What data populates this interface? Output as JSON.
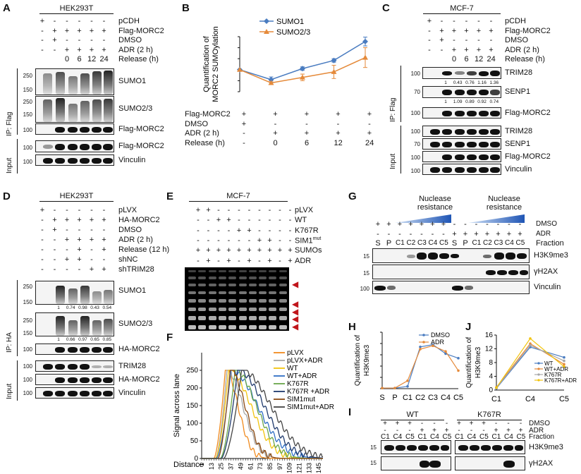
{
  "panels": {
    "A": "A",
    "B": "B",
    "C": "C",
    "D": "D",
    "E": "E",
    "F": "F",
    "G": "G",
    "H": "H",
    "I": "I",
    "J": "J"
  },
  "A": {
    "cell": "HEK293T",
    "rows": [
      {
        "label": "pCDH",
        "marks": [
          "+",
          "-",
          "-",
          "-",
          "-",
          "-"
        ]
      },
      {
        "label": "Flag-MORC2",
        "marks": [
          "-",
          "+",
          "+",
          "+",
          "+",
          "+"
        ]
      },
      {
        "label": "DMSO",
        "marks": [
          "-",
          "+",
          "-",
          "-",
          "-",
          "-"
        ]
      },
      {
        "label": "ADR (2 h)",
        "marks": [
          "-",
          "-",
          "+",
          "+",
          "+",
          "+"
        ]
      },
      {
        "label": "Release (h)",
        "marks": [
          "",
          "",
          "0",
          "6",
          "12",
          "24"
        ]
      }
    ],
    "blots": [
      "SUMO1",
      "SUMO2/3",
      "Flag-MORC2",
      "Flag-MORC2",
      "Vinculin"
    ],
    "mw": {
      "sumo1_a": "250",
      "sumo1_b": "150",
      "sumo2_a": "250",
      "sumo2_b": "150",
      "flag": "100",
      "in_flag": "100",
      "vinc": "100"
    },
    "ip": "IP: Flag",
    "input": "Input"
  },
  "B": {
    "rows": [
      {
        "label": "Flag-MORC2",
        "marks": [
          "+",
          "+",
          "+",
          "+",
          "+"
        ]
      },
      {
        "label": "DMSO",
        "marks": [
          "+",
          "-",
          "-",
          "-",
          "-"
        ]
      },
      {
        "label": "ADR (2 h)",
        "marks": [
          "-",
          "+",
          "+",
          "+",
          "+"
        ]
      },
      {
        "label": "Release (h)",
        "marks": [
          "-",
          "0",
          "6",
          "12",
          "24"
        ]
      }
    ]
  },
  "C": {
    "cell": "MCF-7",
    "rows": [
      {
        "label": "pCDH",
        "marks": [
          "+",
          "-",
          "-",
          "-",
          "-",
          "-"
        ]
      },
      {
        "label": "Flag-MORC2",
        "marks": [
          "-",
          "+",
          "+",
          "+",
          "+",
          "+"
        ]
      },
      {
        "label": "DMSO",
        "marks": [
          "-",
          "+",
          "-",
          "-",
          "-",
          "-"
        ]
      },
      {
        "label": "ADR (2 h)",
        "marks": [
          "-",
          "-",
          "+",
          "+",
          "+",
          "+"
        ]
      },
      {
        "label": "Release (h)",
        "marks": [
          "",
          "",
          "0",
          "6",
          "12",
          "24"
        ]
      }
    ],
    "blots": [
      "TRIM28",
      "SENP1",
      "Flag-MORC2",
      "TRIM28",
      "SENP1",
      "Flag-MORC2",
      "Vinculin"
    ],
    "quant_trim": [
      "1",
      "0.43",
      "0.76",
      "1.16",
      "1.36"
    ],
    "quant_senp": [
      "1",
      "1.09",
      "0.89",
      "0.92",
      "0.74"
    ],
    "mw": {
      "a": "100",
      "b": "70",
      "c": "100",
      "d": "100",
      "e": "70",
      "f": "100",
      "g": "100"
    },
    "ip": "IP: Flag",
    "input": "Input"
  },
  "D": {
    "cell": "HEK293T",
    "rows": [
      {
        "label": "pLVX",
        "marks": [
          "+",
          "-",
          "-",
          "-",
          "-",
          "-"
        ]
      },
      {
        "label": "HA-MORC2",
        "marks": [
          "-",
          "+",
          "+",
          "+",
          "+",
          "+"
        ]
      },
      {
        "label": "DMSO",
        "marks": [
          "-",
          "+",
          "-",
          "-",
          "-",
          "-"
        ]
      },
      {
        "label": "ADR (2 h)",
        "marks": [
          "-",
          "-",
          "+",
          "+",
          "+",
          "+"
        ]
      },
      {
        "label": "Release (12 h)",
        "marks": [
          "-",
          "-",
          "-",
          "+",
          "-",
          "+"
        ]
      },
      {
        "label": "shNC",
        "marks": [
          "-",
          "-",
          "+",
          "+",
          "-",
          "-"
        ]
      },
      {
        "label": "shTRIM28",
        "marks": [
          "-",
          "-",
          "-",
          "-",
          "+",
          "+"
        ]
      }
    ],
    "blots": [
      "SUMO1",
      "SUMO2/3",
      "HA-MORC2",
      "TRIM28",
      "HA-MORC2",
      "Vinculin"
    ],
    "quant_sumo1": [
      "1",
      "0.74",
      "0.98",
      "0.43",
      "0.54"
    ],
    "quant_sumo2": [
      "1",
      "0.66",
      "0.97",
      "0.65",
      "0.85"
    ],
    "mw": {
      "a": "250",
      "b": "150",
      "c": "250",
      "d": "150",
      "e": "100",
      "f": "100",
      "g": "100",
      "h": "100"
    },
    "ip": "IP: HA",
    "input": "Input"
  },
  "E": {
    "cell": "MCF-7",
    "rows": [
      {
        "label": "pLVX",
        "marks": [
          "+",
          "+",
          "-",
          "-",
          "-",
          "-",
          "-",
          "-",
          "-",
          "-"
        ]
      },
      {
        "label": "WT",
        "marks": [
          "-",
          "-",
          "+",
          "+",
          "-",
          "-",
          "-",
          "-",
          "-",
          "-"
        ]
      },
      {
        "label": "K767R",
        "marks": [
          "-",
          "-",
          "-",
          "-",
          "+",
          "+",
          "-",
          "-",
          "-",
          "-"
        ]
      },
      {
        "label": "SIM1",
        "sup": "mut",
        "marks": [
          "-",
          "-",
          "-",
          "-",
          "-",
          "-",
          "+",
          "+",
          "-",
          "-"
        ]
      },
      {
        "label": "SUMOs",
        "marks": [
          "+",
          "+",
          "+",
          "+",
          "+",
          "+",
          "+",
          "+",
          "+",
          "+"
        ]
      },
      {
        "label": "ADR",
        "marks": [
          "-",
          "+",
          "-",
          "+",
          "-",
          "+",
          "-",
          "+",
          "-",
          "+"
        ]
      }
    ]
  },
  "G": {
    "nuclease": "Nuclease\nresistance",
    "nuc1": "Nuclease",
    "nuc2": "resistance",
    "rows": [
      {
        "label": "DMSO",
        "marks": [
          "+",
          "+",
          "+",
          "+",
          "+",
          "+",
          "+",
          "-",
          "-",
          "-",
          "-",
          "-",
          "-",
          "-"
        ]
      },
      {
        "label": "ADR",
        "marks": [
          "-",
          "-",
          "-",
          "-",
          "-",
          "-",
          "-",
          "+",
          "+",
          "+",
          "+",
          "+",
          "+",
          "+"
        ]
      },
      {
        "label": "Fraction",
        "marks": [
          "S",
          "P",
          "C1",
          "C2",
          "C3",
          "C4",
          "C5",
          "S",
          "P",
          "C1",
          "C2",
          "C3",
          "C4",
          "C5"
        ]
      }
    ],
    "blots": [
      "H3K9me3",
      "γH2AX",
      "Vinculin"
    ],
    "mw": {
      "a": "15",
      "b": "15",
      "c": "100"
    }
  },
  "I": {
    "groups": [
      "WT",
      "K767R"
    ],
    "rows": [
      {
        "label": "DMSO",
        "marks": [
          "+",
          "+",
          "+",
          "-",
          "-",
          "-",
          "+",
          "+",
          "+",
          "-",
          "-",
          "-"
        ]
      },
      {
        "label": "ADR",
        "marks": [
          "-",
          "-",
          "-",
          "+",
          "+",
          "+",
          "-",
          "-",
          "-",
          "+",
          "+",
          "+"
        ]
      },
      {
        "label": "Fraction",
        "marks": [
          "C1",
          "C4",
          "C5",
          "C1",
          "C4",
          "C5",
          "C1",
          "C4",
          "C5",
          "C1",
          "C4",
          "C5"
        ]
      }
    ],
    "blots": [
      "H3K9me3",
      "γH2AX"
    ],
    "mw": {
      "a": "15",
      "b": "15"
    }
  },
  "chart_data": [
    {
      "id": "B",
      "type": "line",
      "ylabel": "Quantification of MORC2 SUMOylation",
      "ylim": [
        0,
        2.5
      ],
      "yticks": [
        0,
        0.5,
        1,
        1.5,
        2,
        2.5
      ],
      "categories": [
        "-",
        "0",
        "6",
        "12",
        "24"
      ],
      "series": [
        {
          "name": "SUMO1",
          "color": "#4a7cc0",
          "values": [
            1,
            0.55,
            1.05,
            1.42,
            2.28
          ],
          "err": [
            0,
            0.12,
            0.08,
            0.08,
            0.2
          ]
        },
        {
          "name": "SUMO2/3",
          "color": "#e58a3a",
          "values": [
            1,
            0.4,
            0.65,
            0.9,
            1.55
          ],
          "err": [
            0,
            0.08,
            0.15,
            0.3,
            0.45
          ]
        }
      ]
    },
    {
      "id": "F",
      "type": "line",
      "ylabel": "Signal across lane",
      "xlabel": "Distance",
      "ylim": [
        0,
        300
      ],
      "yticks": [
        0,
        50,
        100,
        150,
        200,
        250
      ],
      "xticks": [
        "1",
        "13",
        "25",
        "37",
        "49",
        "61",
        "73",
        "85",
        "97",
        "109",
        "121",
        "133",
        "145"
      ],
      "xrange": [
        1,
        150
      ],
      "series": [
        {
          "name": "pLVX",
          "color": "#f08a1e",
          "peak": [
            30,
            250
          ],
          "spread": [
            14,
            24
          ]
        },
        {
          "name": "pLVX+ADR",
          "color": "#a6a6a6",
          "peak": [
            32,
            250
          ],
          "spread": [
            14,
            30
          ]
        },
        {
          "name": "WT",
          "color": "#f2c40e",
          "peak": [
            34,
            250
          ],
          "spread": [
            16,
            42
          ]
        },
        {
          "name": "WT+ADR",
          "color": "#2f6fc4",
          "peak": [
            37,
            250
          ],
          "spread": [
            18,
            50
          ]
        },
        {
          "name": "K767R",
          "color": "#6aa64a",
          "peak": [
            42,
            250
          ],
          "spread": [
            18,
            40
          ]
        },
        {
          "name": "K767R +ADR",
          "color": "#1f3a6d",
          "peak": [
            45,
            250
          ],
          "spread": [
            20,
            50
          ]
        },
        {
          "name": "SIM1mut",
          "color": "#8b4a12",
          "peak": [
            36,
            250
          ],
          "spread": [
            15,
            28
          ]
        },
        {
          "name": "SIM1mut+ADR",
          "color": "#444444",
          "peak": [
            50,
            250
          ],
          "spread": [
            22,
            55
          ]
        }
      ]
    },
    {
      "id": "H",
      "type": "line",
      "ylabel": "Quantification of H3K9me3",
      "ylim": [
        0,
        50
      ],
      "yticks": [
        0,
        10,
        20,
        30,
        40,
        50
      ],
      "categories": [
        "S",
        "P",
        "C1",
        "C2",
        "C3",
        "C4",
        "C5"
      ],
      "series": [
        {
          "name": "DMSO",
          "color": "#4a7cc0",
          "values": [
            0.5,
            0.5,
            2,
            37,
            39,
            31,
            27
          ]
        },
        {
          "name": "ADR",
          "color": "#e58a3a",
          "values": [
            0.5,
            0.5,
            7,
            35,
            38,
            33,
            16
          ]
        }
      ]
    },
    {
      "id": "J",
      "type": "line",
      "ylabel": "Quantification of H3K9me3",
      "ylim": [
        0,
        16
      ],
      "yticks": [
        0,
        4,
        8,
        12,
        16
      ],
      "categories": [
        "C1",
        "C4",
        "C5"
      ],
      "series": [
        {
          "name": "WT",
          "color": "#4a7cc0",
          "values": [
            0.5,
            12.5,
            9.5
          ]
        },
        {
          "name": "WT+ADR",
          "color": "#e58a3a",
          "values": [
            0.8,
            13.5,
            7.5
          ]
        },
        {
          "name": "K767R",
          "color": "#a6a6a6",
          "values": [
            0.6,
            13,
            8.5
          ]
        },
        {
          "name": "K767R+ADR",
          "color": "#f2c40e",
          "values": [
            0.7,
            15,
            6.8
          ]
        }
      ]
    }
  ]
}
